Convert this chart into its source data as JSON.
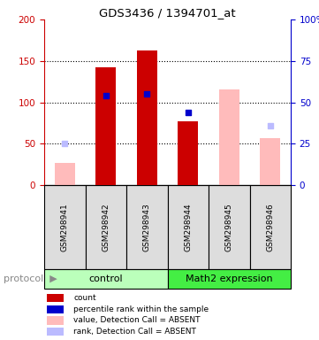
{
  "title": "GDS3436 / 1394701_at",
  "samples": [
    "GSM298941",
    "GSM298942",
    "GSM298943",
    "GSM298944",
    "GSM298945",
    "GSM298946"
  ],
  "group_names": [
    "control",
    "Math2 expression"
  ],
  "group_colors": [
    "#bbffbb",
    "#44ee44"
  ],
  "count_values": [
    null,
    142,
    163,
    77,
    null,
    null
  ],
  "rank_values_pct": [
    null,
    54,
    55,
    44,
    null,
    null
  ],
  "absent_value_bars": [
    27,
    null,
    null,
    null,
    115,
    57
  ],
  "absent_rank_pct": [
    25,
    null,
    null,
    null,
    null,
    36
  ],
  "ylim_left": [
    0,
    200
  ],
  "ylim_right": [
    0,
    100
  ],
  "left_ticks": [
    0,
    50,
    100,
    150,
    200
  ],
  "right_ticks": [
    0,
    25,
    50,
    75,
    100
  ],
  "right_tick_labels": [
    "0",
    "25",
    "50",
    "75",
    "100%"
  ],
  "color_count": "#cc0000",
  "color_rank": "#0000cc",
  "color_absent_value": "#ffbbbb",
  "color_absent_rank": "#bbbbff",
  "bar_width": 0.5,
  "legend_labels": [
    "count",
    "percentile rank within the sample",
    "value, Detection Call = ABSENT",
    "rank, Detection Call = ABSENT"
  ],
  "legend_colors": [
    "#cc0000",
    "#0000cc",
    "#ffbbbb",
    "#bbbbff"
  ]
}
